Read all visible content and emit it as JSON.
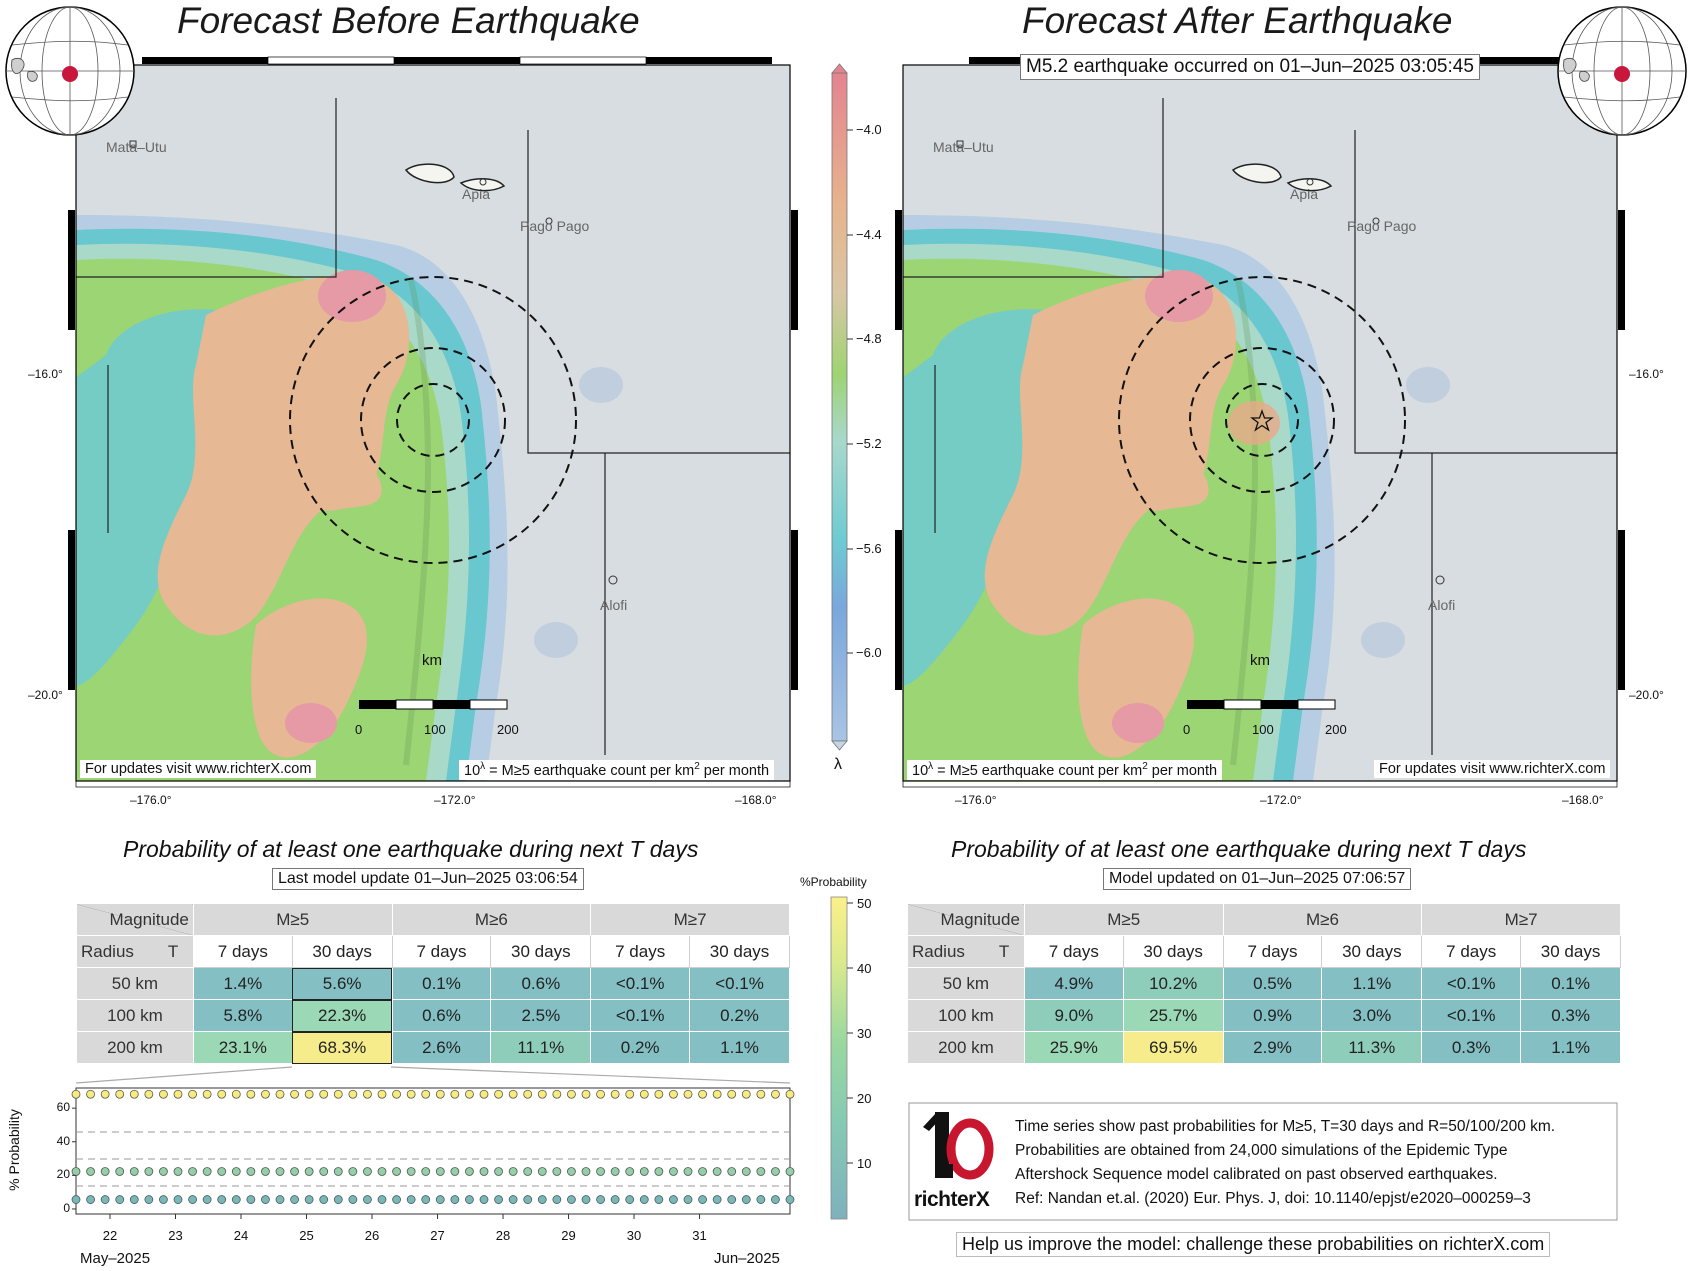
{
  "left": {
    "title": "Forecast Before Earthquake",
    "footer_left": "For updates visit www.richterX.com",
    "footer_right": "10^λ = M≥5 earthquake count per km² per month",
    "prob_title": "Probability of at least one earthquake during next T days",
    "update_label": "Last model update 01–Jun–2025 03:06:54",
    "table": {
      "rows": [
        {
          "radius": "50 km",
          "values": [
            "1.4%",
            "5.6%",
            "0.1%",
            "0.6%",
            "<0.1%",
            "<0.1%"
          ],
          "probs": [
            1.4,
            5.6,
            0.1,
            0.6,
            0.05,
            0.05
          ]
        },
        {
          "radius": "100 km",
          "values": [
            "5.8%",
            "22.3%",
            "0.6%",
            "2.5%",
            "<0.1%",
            "0.2%"
          ],
          "probs": [
            5.8,
            22.3,
            0.6,
            2.5,
            0.05,
            0.2
          ]
        },
        {
          "radius": "200 km",
          "values": [
            "23.1%",
            "68.3%",
            "2.6%",
            "11.1%",
            "0.2%",
            "1.1%"
          ],
          "probs": [
            23.1,
            68.3,
            2.6,
            11.1,
            0.2,
            1.1
          ]
        }
      ]
    }
  },
  "right": {
    "title": "Forecast After Earthquake",
    "event_label": "M5.2 earthquake occurred on 01–Jun–2025 03:05:45",
    "footer_left": "10^λ = M≥5 earthquake count per km² per month",
    "footer_right": "For updates visit www.richterX.com",
    "prob_title": "Probability of at least one earthquake during next T days",
    "update_label": "Model updated on 01–Jun–2025 07:06:57",
    "table": {
      "rows": [
        {
          "radius": "50 km",
          "values": [
            "4.9%",
            "10.2%",
            "0.5%",
            "1.1%",
            "<0.1%",
            "0.1%"
          ],
          "probs": [
            4.9,
            10.2,
            0.5,
            1.1,
            0.05,
            0.1
          ]
        },
        {
          "radius": "100 km",
          "values": [
            "9.0%",
            "25.7%",
            "0.9%",
            "3.0%",
            "<0.1%",
            "0.3%"
          ],
          "probs": [
            9.0,
            25.7,
            0.9,
            3.0,
            0.05,
            0.3
          ]
        },
        {
          "radius": "200 km",
          "values": [
            "25.9%",
            "69.5%",
            "2.9%",
            "11.3%",
            "0.3%",
            "1.1%"
          ],
          "probs": [
            25.9,
            69.5,
            2.9,
            11.3,
            0.3,
            1.1
          ]
        }
      ]
    }
  },
  "table_headers": {
    "magnitude": "Magnitude",
    "radius": "Radius",
    "t": "T",
    "magnitudes": [
      "M≥5",
      "M≥6",
      "M≥7"
    ],
    "durations": [
      "7 days",
      "30 days",
      "7 days",
      "30 days",
      "7 days",
      "30 days"
    ]
  },
  "map": {
    "places": [
      "Mata–Utu",
      "Apia",
      "Pago Pago",
      "Alofi"
    ],
    "lon_ticks": [
      "–176.0°",
      "–172.0°",
      "–168.0°"
    ],
    "lat_ticks": [
      "–16.0°",
      "–20.0°"
    ],
    "scale_unit": "km",
    "scale_ticks": [
      "0",
      "100",
      "200"
    ]
  },
  "lambda_colorbar": {
    "ticks": [
      "−4.0",
      "−4.4",
      "−4.8",
      "−5.2",
      "−5.6",
      "−6.0"
    ],
    "label": "λ"
  },
  "prob_colorbar": {
    "title": "%Probability",
    "ticks": [
      "50",
      "40",
      "30",
      "20",
      "10"
    ]
  },
  "timeseries": {
    "ylabel": "% Probability",
    "yticks": [
      "0",
      "20",
      "40",
      "60"
    ],
    "xticks": [
      "22",
      "23",
      "24",
      "25",
      "26",
      "27",
      "28",
      "29",
      "30",
      "31"
    ],
    "start_label": "May–2025",
    "end_label": "Jun–2025"
  },
  "info": {
    "logo_text": "richterX",
    "lines": [
      "Time series show past probabilities for M≥5, T=30 days and R=50/100/200 km.",
      "Probabilities are obtained from 24,000 simulations of the Epidemic Type",
      "Aftershock Sequence model calibrated on past observed earthquakes.",
      "Ref: Nandan et.al. (2020) Eur. Phys. J, doi: 10.1140/epjst/e2020–000259–3"
    ],
    "help": "Help us improve the model: challenge these probabilities on richterX.com"
  },
  "chart_data": [
    {
      "type": "line",
      "title": "",
      "xlabel": "",
      "ylabel": "% Probability",
      "x": [
        "22",
        "23",
        "24",
        "25",
        "26",
        "27",
        "28",
        "29",
        "30",
        "31"
      ],
      "ylim": [
        -3,
        72
      ],
      "series": [
        {
          "name": "R=200 km",
          "values": [
            68.3,
            68.3,
            68.3,
            68.3,
            68.3,
            68.3,
            68.3,
            68.3,
            68.3,
            68.3
          ]
        },
        {
          "name": "R=100 km",
          "values": [
            22.3,
            22.3,
            22.3,
            22.3,
            22.3,
            22.3,
            22.3,
            22.3,
            22.3,
            22.3
          ]
        },
        {
          "name": "R=50 km",
          "values": [
            5.6,
            5.6,
            5.6,
            5.6,
            5.6,
            5.6,
            5.6,
            5.6,
            5.6,
            5.6
          ]
        }
      ],
      "grid": "horizontal-dashed"
    }
  ],
  "colors": {
    "sea": "#d7dde0",
    "low": "#8fb4dd",
    "cyan": "#6ac8cf",
    "green": "#9bd37a",
    "tan": "#e6b993",
    "pink": "#e59aa6",
    "cell_low": "#84bfc4",
    "cell_mid": "#9bd8b6",
    "cell_high": "#f6ec8c",
    "dot_yellow": "#f5ec7c",
    "dot_green": "#93cfa7",
    "dot_teal": "#76b9bb"
  }
}
